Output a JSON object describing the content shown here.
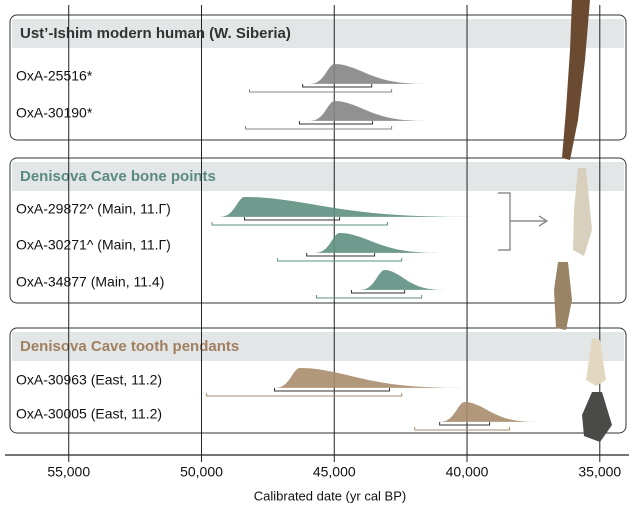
{
  "chart_data": {
    "type": "calibration",
    "xlabel": "Calibrated date (yr cal BP)",
    "xlim": [
      57400,
      33900
    ],
    "xticks": [
      {
        "value": 55000,
        "label": "55,000"
      },
      {
        "value": 50000,
        "label": "50,000"
      },
      {
        "value": 45000,
        "label": "45,000"
      },
      {
        "value": 40000,
        "label": "40,000"
      },
      {
        "value": 35000,
        "label": "35,000"
      }
    ],
    "grid": true,
    "groups": [
      {
        "title": "Ust’-Ishim modern human (W. Siberia)",
        "color": "#858585",
        "title_color": "#333333",
        "samples": [
          {
            "label": "OxA-25516*",
            "mode": 44990,
            "range68": [
              46190,
              43590
            ],
            "range95": [
              48190,
              42840
            ]
          },
          {
            "label": "OxA-30190*",
            "mode": 44990,
            "range68": [
              46310,
              43560
            ],
            "range95": [
              48340,
              42840
            ]
          }
        ]
      },
      {
        "title": "Denisova Cave bone points",
        "color": "#5f8f82",
        "title_color": "#5a8a80",
        "samples": [
          {
            "label": "OxA-29872^ (Main, 11.Г)",
            "mode": 48380,
            "range68": [
              48380,
              44800
            ],
            "range95": [
              49600,
              43000
            ]
          },
          {
            "label": "OxA-30271^ (Main, 11.Г)",
            "mode": 44800,
            "range68": [
              46040,
              43480
            ],
            "range95": [
              47140,
              42460
            ]
          },
          {
            "label": "OxA-34877 (Main, 11.4)",
            "mode": 43100,
            "range68": [
              44350,
              42350
            ],
            "range95": [
              45670,
              41710
            ]
          }
        ]
      },
      {
        "title": "Denisova Cave tooth pendants",
        "color": "#a98d6c",
        "title_color": "#a08060",
        "samples": [
          {
            "label": "OxA-30963 (East, 11.2)",
            "mode": 46300,
            "range68": [
              47250,
              42920
            ],
            "range95": [
              49810,
              42460
            ]
          },
          {
            "label": "OxA-30005 (East, 11.2)",
            "mode": 40090,
            "range68": [
              41030,
              39150
            ],
            "range95": [
              41970,
              38400
            ]
          }
        ]
      }
    ]
  }
}
